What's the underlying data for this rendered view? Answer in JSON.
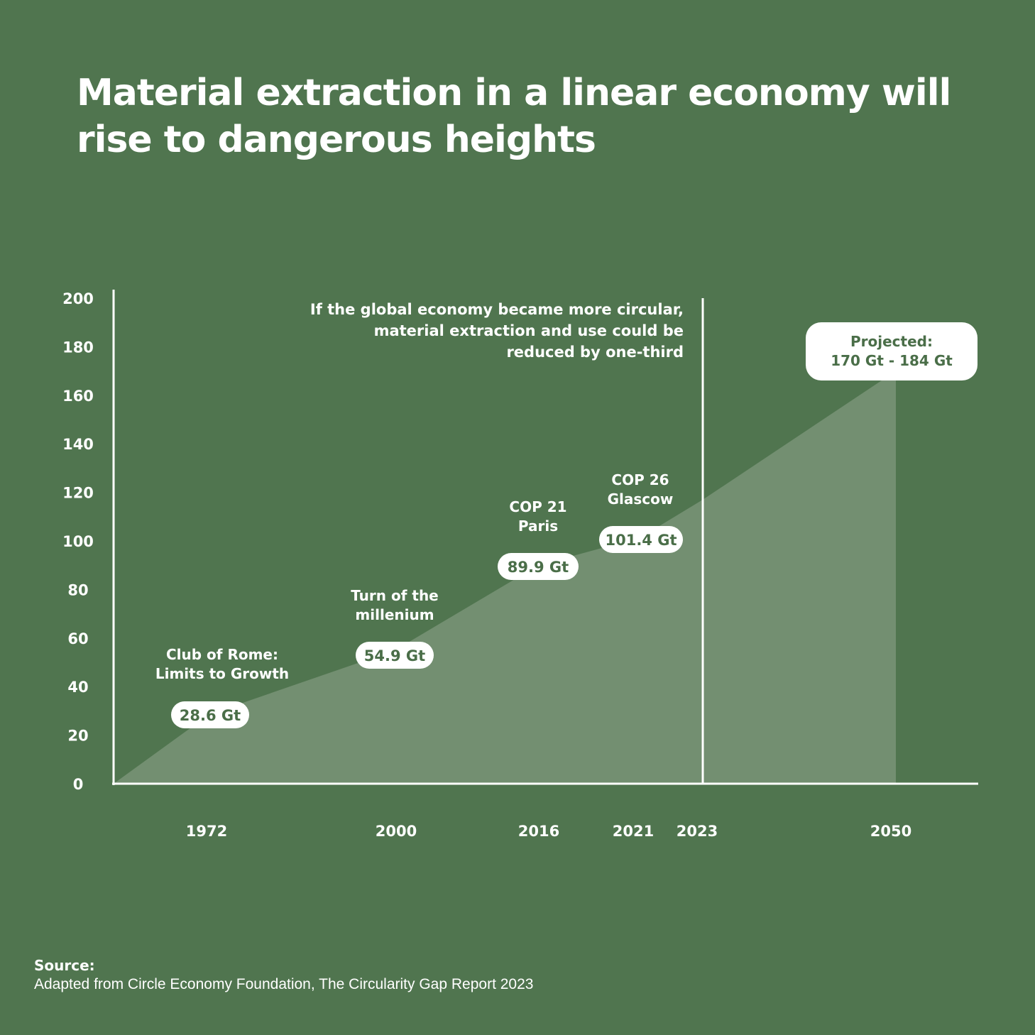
{
  "title": "Material extraction in a linear economy will rise to dangerous heights",
  "source": {
    "label": "Source:",
    "text": "Adapted from Circle Economy Foundation, The Circularity Gap Report 2023"
  },
  "colors": {
    "background": "#50754f",
    "area": "#738f71",
    "axis": "#ffffff",
    "pill_text": "#4a6e48"
  },
  "chart_data": {
    "type": "area",
    "title": "Material extraction in a linear economy will rise to dangerous heights",
    "unit": "Gt",
    "y_ticks": [
      0,
      20,
      40,
      60,
      80,
      100,
      120,
      140,
      160,
      180,
      200
    ],
    "ylim": [
      0,
      200
    ],
    "x_ticks": [
      "1972",
      "2000",
      "2016",
      "2021",
      "2023",
      "2050"
    ],
    "points": [
      {
        "year": 1962,
        "value": 0
      },
      {
        "year": 1972,
        "value": 28.6
      },
      {
        "year": 2000,
        "value": 54.9
      },
      {
        "year": 2016,
        "value": 89.9
      },
      {
        "year": 2021,
        "value": 101.4
      },
      {
        "year": 2023,
        "value": 117
      },
      {
        "year": 2050,
        "value": 170
      }
    ],
    "divider_year": 2023,
    "divider_note": "If the global economy became more circular, material extraction and use could be reduced by one-third",
    "annotations": [
      {
        "year": 1972,
        "value": 28.6,
        "event": "Club of Rome: Limits to Growth",
        "label": "28.6 Gt"
      },
      {
        "year": 2000,
        "value": 54.9,
        "event": "Turn of the millenium",
        "label": "54.9 Gt"
      },
      {
        "year": 2016,
        "value": 89.9,
        "event": "COP 21 Paris",
        "label": "89.9 Gt"
      },
      {
        "year": 2021,
        "value": 101.4,
        "event": "COP 26 Glascow",
        "label": "101.4 Gt"
      }
    ],
    "projection": {
      "year": 2050,
      "label_line1": "Projected:",
      "label_line2": "170 Gt - 184 Gt",
      "range": [
        170,
        184
      ]
    }
  }
}
